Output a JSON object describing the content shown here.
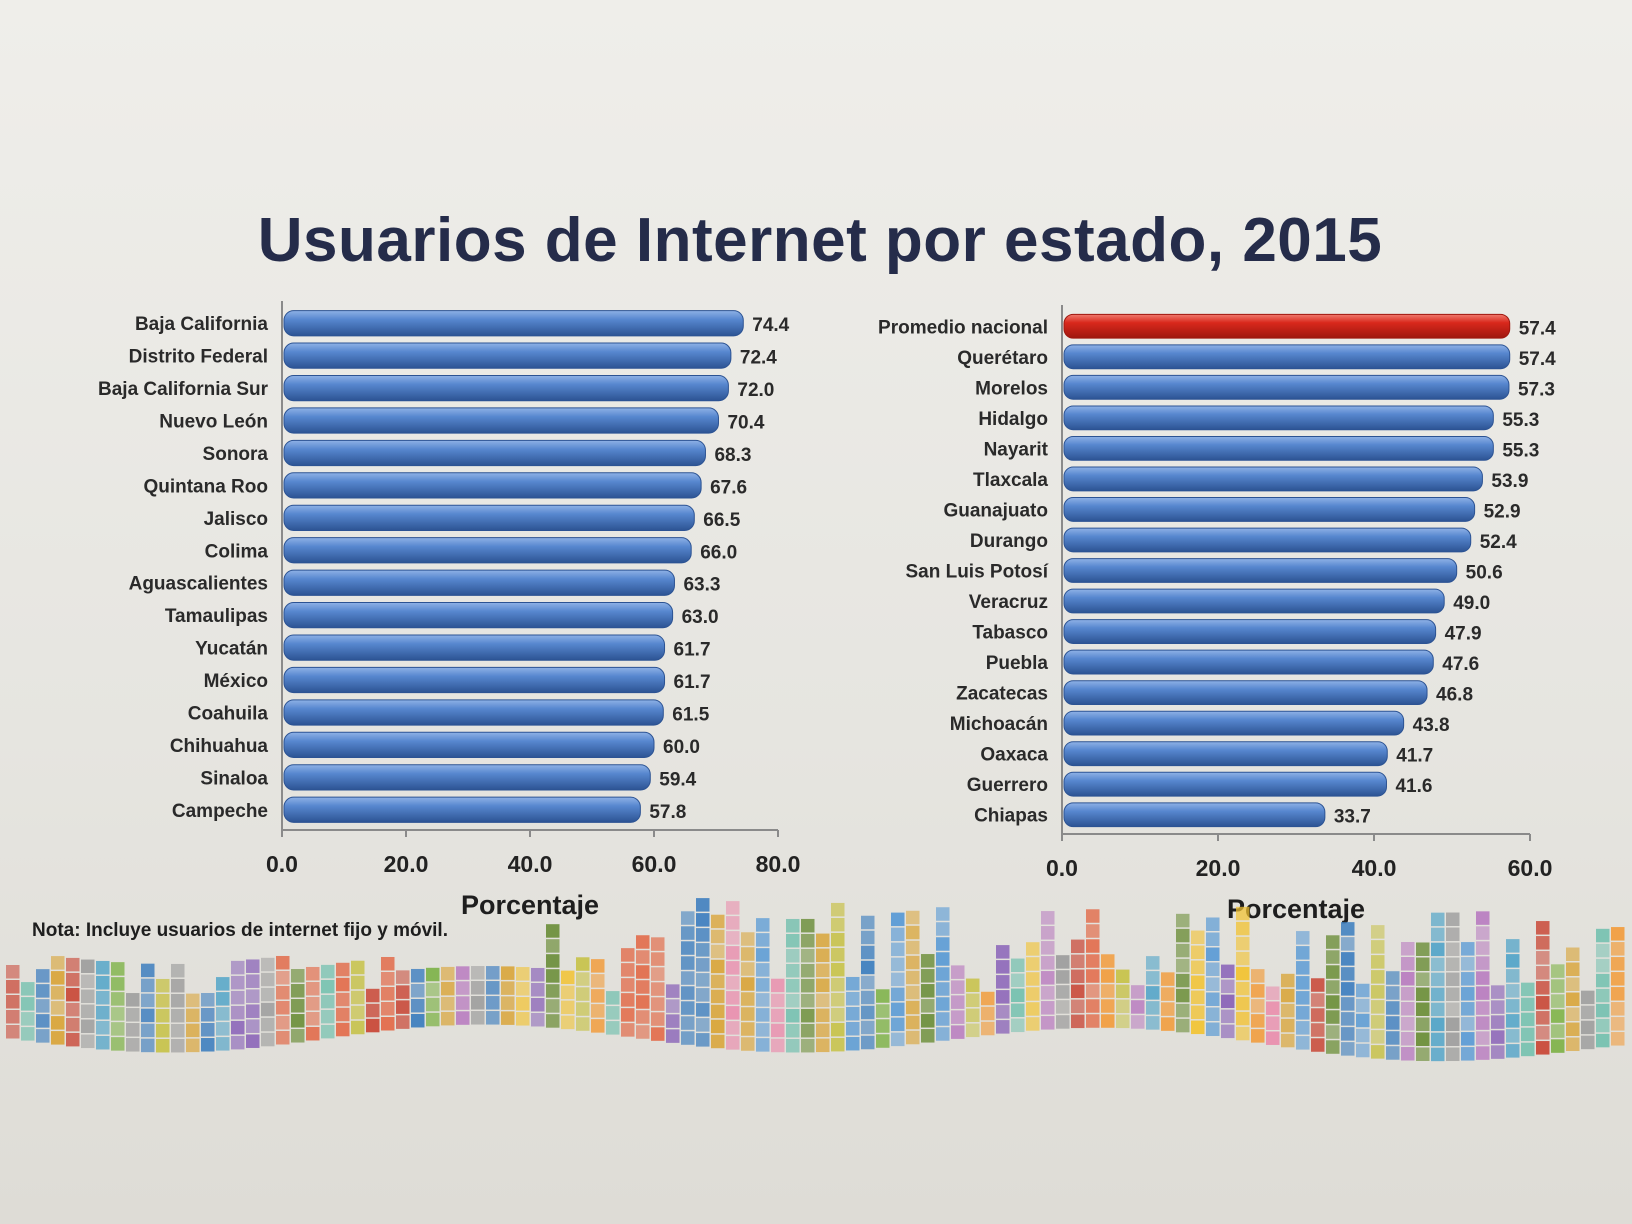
{
  "title": "Usuarios de Internet por estado, 2015",
  "note": "Nota: Incluye usuarios de internet fijo y móvil.",
  "colors": {
    "bar": "#4a78bf",
    "bar_dark": "#2c5393",
    "highlight": "#d9281c",
    "highlight_dark": "#9e170f"
  },
  "chart_data": [
    {
      "type": "bar",
      "orientation": "horizontal",
      "categories": [
        "Baja California",
        "Distrito Federal",
        "Baja California Sur",
        "Nuevo León",
        "Sonora",
        "Quintana Roo",
        "Jalisco",
        "Colima",
        "Aguascalientes",
        "Tamaulipas",
        "Yucatán",
        "México",
        "Coahuila",
        "Chihuahua",
        "Sinaloa",
        "Campeche"
      ],
      "values": [
        74.4,
        72.4,
        72.0,
        70.4,
        68.3,
        67.6,
        66.5,
        66.0,
        63.3,
        63.0,
        61.7,
        61.7,
        61.5,
        60.0,
        59.4,
        57.8
      ],
      "value_labels": [
        "74.4",
        "72.4",
        "72.0",
        "70.4",
        "68.3",
        "67.6",
        "66.5",
        "66.0",
        "63.3",
        "63.0",
        "61.7",
        "61.7",
        "61.5",
        "60.0",
        "59.4",
        "57.8"
      ],
      "xlim": [
        0,
        80
      ],
      "xticks": [
        "0.0",
        "20.0",
        "40.0",
        "60.0",
        "80.0"
      ],
      "xlabel": "Porcentaje"
    },
    {
      "type": "bar",
      "orientation": "horizontal",
      "categories": [
        "Promedio nacional",
        "Querétaro",
        "Morelos",
        "Hidalgo",
        "Nayarit",
        "Tlaxcala",
        "Guanajuato",
        "Durango",
        "San Luis Potosí",
        "Veracruz",
        "Tabasco",
        "Puebla",
        "Zacatecas",
        "Michoacán",
        "Oaxaca",
        "Guerrero",
        "Chiapas"
      ],
      "values": [
        57.4,
        57.4,
        57.3,
        55.3,
        55.3,
        53.9,
        52.9,
        52.4,
        50.6,
        49.0,
        47.9,
        47.6,
        46.8,
        43.8,
        41.7,
        41.6,
        33.7
      ],
      "value_labels": [
        "57.4",
        "57.4",
        "57.3",
        "55.3",
        "55.3",
        "53.9",
        "52.9",
        "52.4",
        "50.6",
        "49.0",
        "47.9",
        "47.6",
        "46.8",
        "43.8",
        "41.7",
        "41.6",
        "33.7"
      ],
      "highlight_index": 0,
      "xlim": [
        0,
        60
      ],
      "xticks": [
        "0.0",
        "20.0",
        "40.0",
        "60.0"
      ],
      "xlabel": "Porcentaje"
    }
  ]
}
